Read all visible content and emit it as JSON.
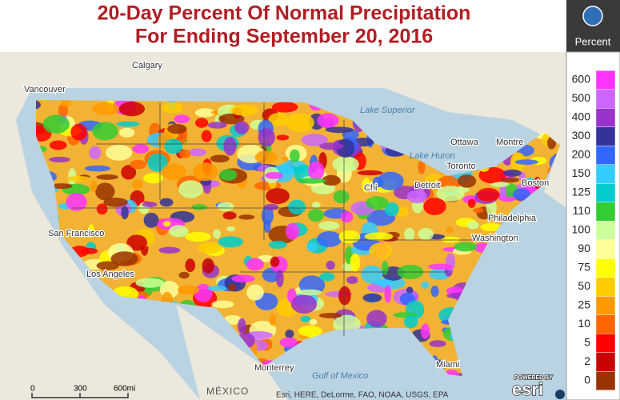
{
  "header": {
    "title_line1": "20-Day Percent Of Normal Precipitation",
    "title_line2": "For Ending September 20, 2016"
  },
  "legend": {
    "title": "Percent",
    "items": [
      {
        "label": 600,
        "color": "#ff33ff"
      },
      {
        "label": 500,
        "color": "#cc66ff"
      },
      {
        "label": 400,
        "color": "#9933cc"
      },
      {
        "label": 300,
        "color": "#333399"
      },
      {
        "label": 200,
        "color": "#3366ff"
      },
      {
        "label": 150,
        "color": "#33ccff"
      },
      {
        "label": 125,
        "color": "#00cccc"
      },
      {
        "label": 110,
        "color": "#33cc33"
      },
      {
        "label": 100,
        "color": "#ccff99"
      },
      {
        "label": 90,
        "color": "#ffff99"
      },
      {
        "label": 75,
        "color": "#ffff00"
      },
      {
        "label": 50,
        "color": "#ffcc00"
      },
      {
        "label": 25,
        "color": "#ff9900"
      },
      {
        "label": 10,
        "color": "#ff6600"
      },
      {
        "label": 5,
        "color": "#ff0000"
      },
      {
        "label": 2,
        "color": "#cc0000"
      },
      {
        "label": 0,
        "color": "#993300"
      }
    ]
  },
  "map_labels": [
    "Calgary",
    "Vancouver",
    "Lake Superior",
    "Lake Huron",
    "Ottawa",
    "Montre",
    "Toronto",
    "Detroit",
    "Chi",
    "Boston",
    "Philadelphia",
    "Washington",
    "San Francisco",
    "Los Angeles",
    "Monterrey",
    "Miami",
    "Gulf of Mexico",
    "MÉXICO"
  ],
  "scale": [
    0,
    300,
    "600mi"
  ],
  "attribution": "Esri, HERE, DeLorme, FAO, NOAA, USGS, EPA",
  "logo": {
    "caption": "POWERED BY",
    "brand": "esri"
  }
}
